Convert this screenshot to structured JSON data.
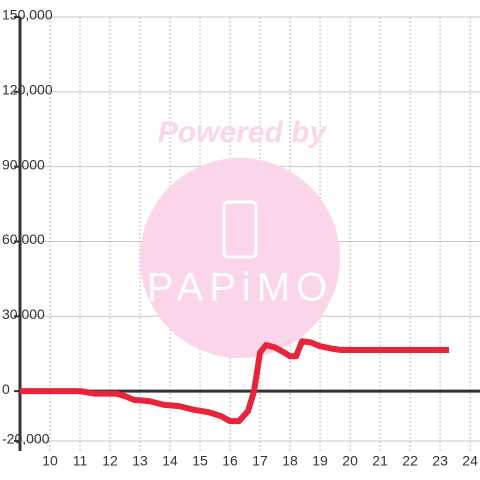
{
  "chart_data": {
    "type": "line",
    "x": [
      9,
      11,
      11.5,
      12.2,
      12.5,
      12.8,
      13.3,
      13.8,
      14.3,
      14.8,
      15.3,
      15.7,
      16,
      16.3,
      16.6,
      16.8,
      17,
      17.2,
      17.5,
      17.8,
      18,
      18.2,
      18.4,
      18.7,
      19,
      19.4,
      19.7,
      20,
      23.3
    ],
    "values": [
      0,
      0,
      -1000,
      -1000,
      -2000,
      -3500,
      -4000,
      -5500,
      -6000,
      -7500,
      -8500,
      -10000,
      -12000,
      -12000,
      -8000,
      0,
      15500,
      18500,
      17500,
      15500,
      14000,
      14000,
      20000,
      19500,
      18000,
      17000,
      16500,
      16500,
      16500
    ],
    "color": "#e8233a",
    "xlim": [
      9,
      24.33
    ],
    "xticks": [
      10,
      11,
      12,
      13,
      14,
      15,
      16,
      17,
      18,
      19,
      20,
      21,
      22,
      23,
      24
    ],
    "ylim": [
      -24000,
      150000
    ],
    "yticks": [
      {
        "value": -20000,
        "label": "-20,000"
      },
      0,
      {
        "value": 30000,
        "label": "30,000"
      },
      {
        "value": 60000,
        "label": "60,000"
      },
      {
        "value": 90000,
        "label": "90,000"
      },
      {
        "value": 120000,
        "label": "120,000"
      },
      {
        "value": 150000,
        "label": "150,000"
      }
    ],
    "grid": true
  },
  "watermark": {
    "line1": "Powered by",
    "line2": "PAPiMO"
  }
}
